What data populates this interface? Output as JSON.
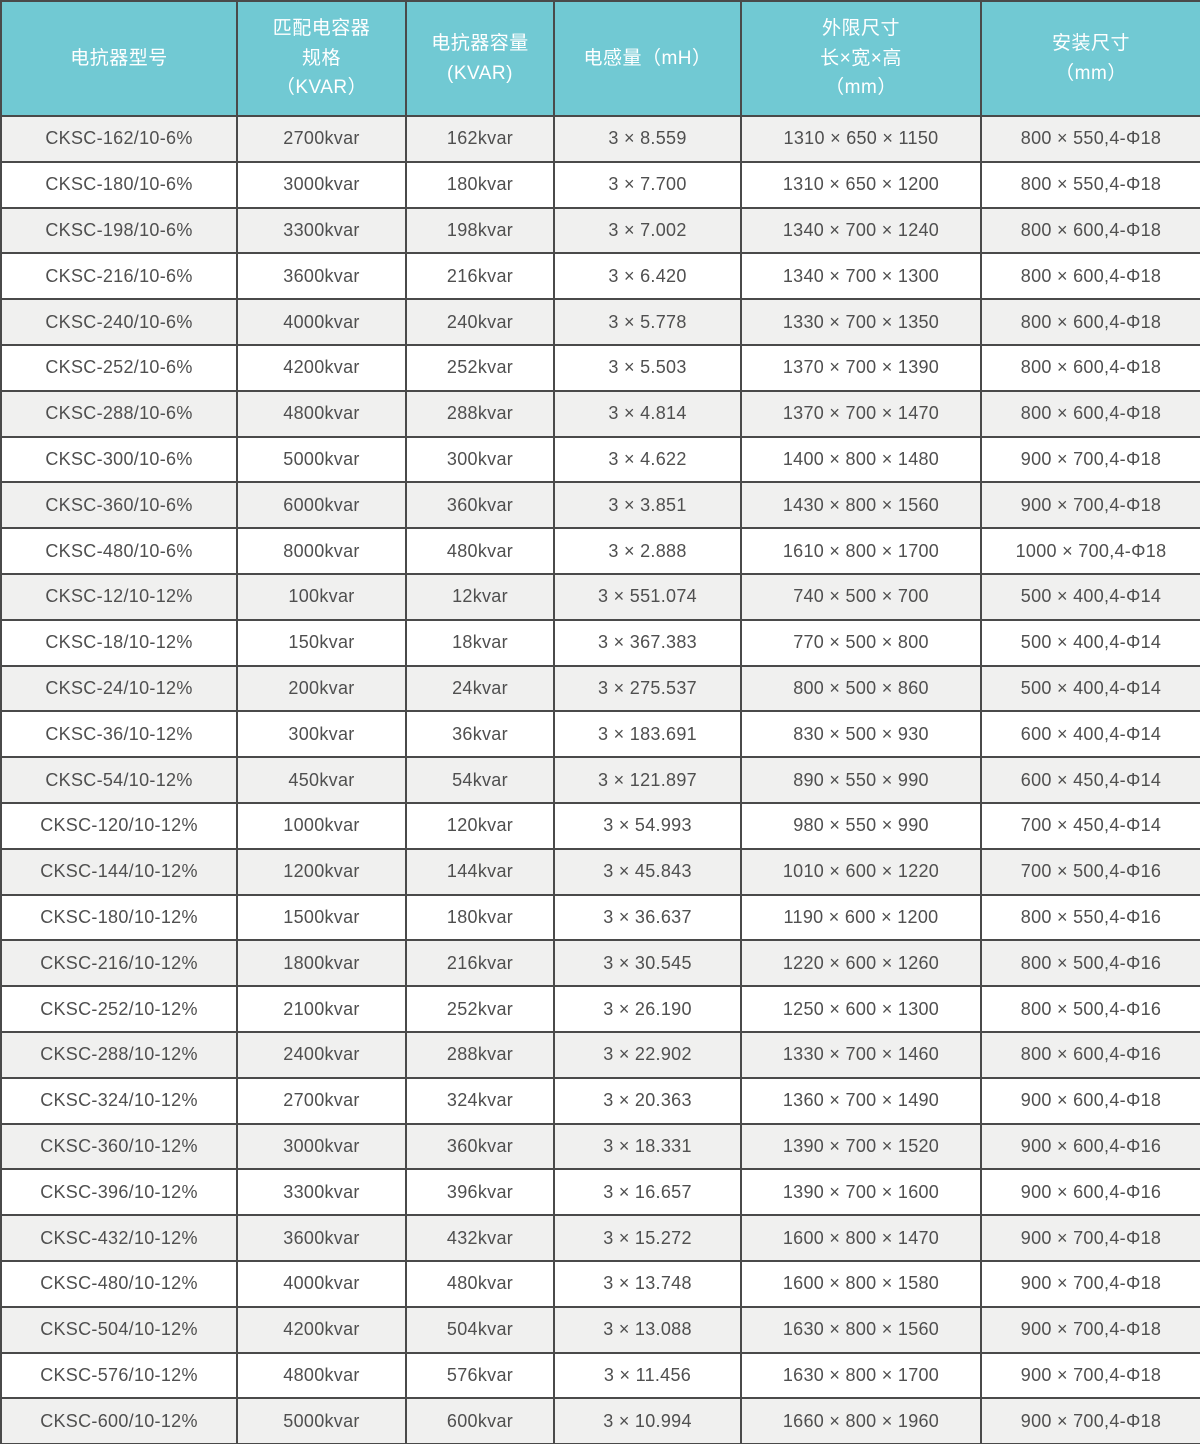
{
  "colors": {
    "header_bg": "#71c9d3",
    "header_text": "#ffffff",
    "row_odd_bg": "#f0f0ef",
    "row_even_bg": "#ffffff",
    "border_color": "#4a4a4a",
    "body_text": "#4f4f4f"
  },
  "table": {
    "columns": [
      {
        "id": "model",
        "lines": [
          "电抗器型号"
        ]
      },
      {
        "id": "capacitor",
        "lines": [
          "匹配电容器",
          "规格",
          "（KVAR）"
        ]
      },
      {
        "id": "capacity",
        "lines": [
          "电抗器容量",
          "(KVAR)"
        ]
      },
      {
        "id": "inductance",
        "lines": [
          "电感量（mH）"
        ]
      },
      {
        "id": "outer-size",
        "lines": [
          "外限尺寸",
          "长×宽×高",
          "（mm）"
        ]
      },
      {
        "id": "mount-size",
        "lines": [
          "安装尺寸",
          "（mm）"
        ]
      }
    ],
    "rows": [
      [
        "CKSC-162/10-6%",
        "2700kvar",
        "162kvar",
        "3 × 8.559",
        "1310 × 650 × 1150",
        "800 × 550,4-Φ18"
      ],
      [
        "CKSC-180/10-6%",
        "3000kvar",
        "180kvar",
        "3 × 7.700",
        "1310 × 650 × 1200",
        "800 × 550,4-Φ18"
      ],
      [
        "CKSC-198/10-6%",
        "3300kvar",
        "198kvar",
        "3 × 7.002",
        "1340 × 700 × 1240",
        "800 × 600,4-Φ18"
      ],
      [
        "CKSC-216/10-6%",
        "3600kvar",
        "216kvar",
        "3 × 6.420",
        "1340 × 700 × 1300",
        "800 × 600,4-Φ18"
      ],
      [
        "CKSC-240/10-6%",
        "4000kvar",
        "240kvar",
        "3 × 5.778",
        "1330 × 700 × 1350",
        "800 × 600,4-Φ18"
      ],
      [
        "CKSC-252/10-6%",
        "4200kvar",
        "252kvar",
        "3 × 5.503",
        "1370 × 700 × 1390",
        "800 × 600,4-Φ18"
      ],
      [
        "CKSC-288/10-6%",
        "4800kvar",
        "288kvar",
        "3 × 4.814",
        "1370 × 700 × 1470",
        "800 × 600,4-Φ18"
      ],
      [
        "CKSC-300/10-6%",
        "5000kvar",
        "300kvar",
        "3 × 4.622",
        "1400 × 800 × 1480",
        "900 × 700,4-Φ18"
      ],
      [
        "CKSC-360/10-6%",
        "6000kvar",
        "360kvar",
        "3 × 3.851",
        "1430 × 800 × 1560",
        "900 × 700,4-Φ18"
      ],
      [
        "CKSC-480/10-6%",
        "8000kvar",
        "480kvar",
        "3 × 2.888",
        "1610 × 800 × 1700",
        "1000 × 700,4-Φ18"
      ],
      [
        "CKSC-12/10-12%",
        "100kvar",
        "12kvar",
        "3 × 551.074",
        "740 × 500 × 700",
        "500 × 400,4-Φ14"
      ],
      [
        "CKSC-18/10-12%",
        "150kvar",
        "18kvar",
        "3 × 367.383",
        "770 × 500 × 800",
        "500 × 400,4-Φ14"
      ],
      [
        "CKSC-24/10-12%",
        "200kvar",
        "24kvar",
        "3 × 275.537",
        "800 × 500 × 860",
        "500 × 400,4-Φ14"
      ],
      [
        "CKSC-36/10-12%",
        "300kvar",
        "36kvar",
        "3 × 183.691",
        "830 × 500 × 930",
        "600 × 400,4-Φ14"
      ],
      [
        "CKSC-54/10-12%",
        "450kvar",
        "54kvar",
        "3 × 121.897",
        "890 × 550 × 990",
        "600 × 450,4-Φ14"
      ],
      [
        "CKSC-120/10-12%",
        "1000kvar",
        "120kvar",
        "3 × 54.993",
        "980 × 550 × 990",
        "700 × 450,4-Φ14"
      ],
      [
        "CKSC-144/10-12%",
        "1200kvar",
        "144kvar",
        "3 × 45.843",
        "1010 × 600 × 1220",
        "700 × 500,4-Φ16"
      ],
      [
        "CKSC-180/10-12%",
        "1500kvar",
        "180kvar",
        "3 × 36.637",
        "1190 × 600 × 1200",
        "800 × 550,4-Φ16"
      ],
      [
        "CKSC-216/10-12%",
        "1800kvar",
        "216kvar",
        "3 × 30.545",
        "1220 × 600 × 1260",
        "800 × 500,4-Φ16"
      ],
      [
        "CKSC-252/10-12%",
        "2100kvar",
        "252kvar",
        "3 × 26.190",
        "1250 × 600 × 1300",
        "800 × 500,4-Φ16"
      ],
      [
        "CKSC-288/10-12%",
        "2400kvar",
        "288kvar",
        "3 × 22.902",
        "1330 × 700 × 1460",
        "800 × 600,4-Φ16"
      ],
      [
        "CKSC-324/10-12%",
        "2700kvar",
        "324kvar",
        "3 × 20.363",
        "1360 × 700 × 1490",
        "900 × 600,4-Φ18"
      ],
      [
        "CKSC-360/10-12%",
        "3000kvar",
        "360kvar",
        "3 × 18.331",
        "1390 × 700 × 1520",
        "900 × 600,4-Φ16"
      ],
      [
        "CKSC-396/10-12%",
        "3300kvar",
        "396kvar",
        "3 × 16.657",
        "1390 × 700 × 1600",
        "900 × 600,4-Φ16"
      ],
      [
        "CKSC-432/10-12%",
        "3600kvar",
        "432kvar",
        "3 × 15.272",
        "1600 × 800 × 1470",
        "900 × 700,4-Φ18"
      ],
      [
        "CKSC-480/10-12%",
        "4000kvar",
        "480kvar",
        "3 × 13.748",
        "1600 × 800 × 1580",
        "900 × 700,4-Φ18"
      ],
      [
        "CKSC-504/10-12%",
        "4200kvar",
        "504kvar",
        "3 × 13.088",
        "1630 × 800 × 1560",
        "900 × 700,4-Φ18"
      ],
      [
        "CKSC-576/10-12%",
        "4800kvar",
        "576kvar",
        "3 × 11.456",
        "1630 × 800 × 1700",
        "900 × 700,4-Φ18"
      ],
      [
        "CKSC-600/10-12%",
        "5000kvar",
        "600kvar",
        "3 × 10.994",
        "1660 × 800 × 1960",
        "900 × 700,4-Φ18"
      ]
    ]
  }
}
